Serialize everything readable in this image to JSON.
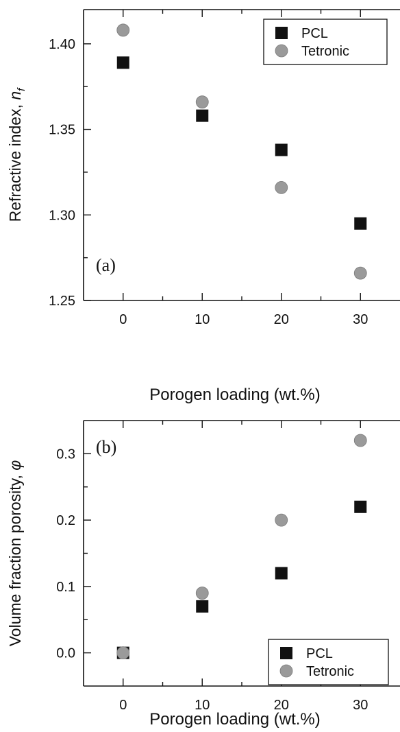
{
  "chart_data": [
    {
      "type": "scatter",
      "panel_label": "(a)",
      "xlabel": "Porogen loading (wt.%)",
      "ylabel_main": "Refractive index, ",
      "ylabel_symbol": "n",
      "ylabel_subscript": "f",
      "xlim": [
        -5,
        35
      ],
      "ylim": [
        1.25,
        1.42
      ],
      "xticks": [
        0,
        10,
        20,
        30
      ],
      "xtick_labels": [
        "0",
        "10",
        "20",
        "30"
      ],
      "yticks": [
        1.25,
        1.3,
        1.35,
        1.4
      ],
      "ytick_labels": [
        "1.25",
        "1.30",
        "1.35",
        "1.40"
      ],
      "legend_position": "top-right",
      "series": [
        {
          "name": "PCL",
          "marker": "square",
          "color": "#111111",
          "x": [
            0,
            10,
            20,
            30
          ],
          "y": [
            1.389,
            1.358,
            1.338,
            1.295
          ]
        },
        {
          "name": "Tetronic",
          "marker": "circle",
          "color": "#9a9a9a",
          "x": [
            0,
            10,
            20,
            30
          ],
          "y": [
            1.408,
            1.366,
            1.316,
            1.266
          ]
        }
      ]
    },
    {
      "type": "scatter",
      "panel_label": "(b)",
      "xlabel": "Porogen loading (wt.%)",
      "ylabel_main": "Volume fraction porosity, ",
      "ylabel_symbol": "φ",
      "xlim": [
        -5,
        35
      ],
      "ylim": [
        -0.05,
        0.35
      ],
      "xticks": [
        0,
        10,
        20,
        30
      ],
      "xtick_labels": [
        "0",
        "10",
        "20",
        "30"
      ],
      "yticks": [
        0.0,
        0.1,
        0.2,
        0.3
      ],
      "ytick_labels": [
        "0.0",
        "0.1",
        "0.2",
        "0.3"
      ],
      "legend_position": "bottom-right",
      "series": [
        {
          "name": "PCL",
          "marker": "square",
          "color": "#111111",
          "x": [
            0,
            10,
            20,
            30
          ],
          "y": [
            0.0,
            0.07,
            0.12,
            0.22
          ]
        },
        {
          "name": "Tetronic",
          "marker": "circle",
          "color": "#9a9a9a",
          "x": [
            0,
            10,
            20,
            30
          ],
          "y": [
            0.0,
            0.09,
            0.2,
            0.32
          ]
        }
      ]
    }
  ]
}
